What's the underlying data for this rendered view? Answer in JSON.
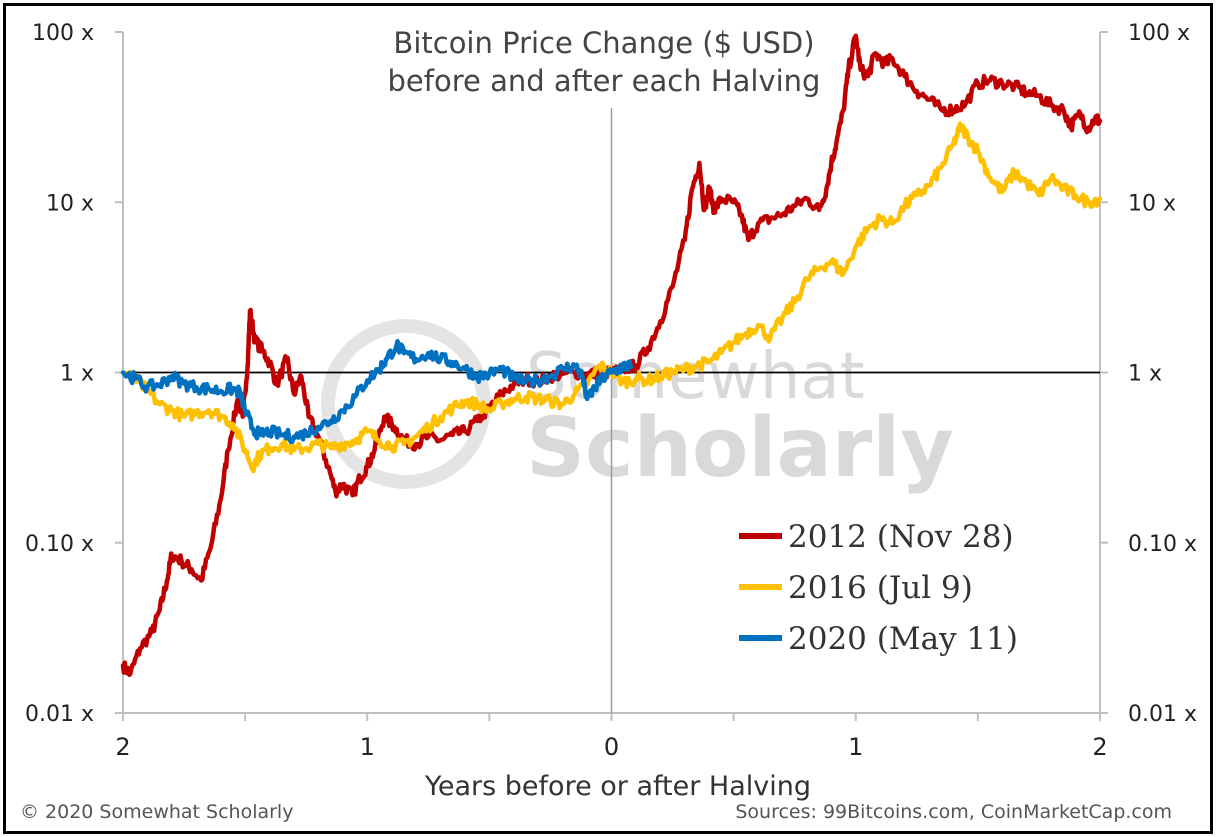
{
  "chart_data": {
    "type": "line",
    "title_lines": [
      "Bitcoin Price Change ($ USD)",
      "before and after each Halving"
    ],
    "xlabel": "Years before or after Halving",
    "x_range": [
      -2,
      2
    ],
    "x_tick_values": [
      -2,
      -1,
      0,
      1,
      2
    ],
    "x_tick_labels": [
      "2",
      "1",
      "0",
      "1",
      "2"
    ],
    "y_scale": "log",
    "y_range": [
      0.01,
      100
    ],
    "y_tick_values": [
      0.01,
      0.1,
      1,
      10,
      100
    ],
    "y_tick_labels": [
      "0.01 x",
      "0.10 x",
      "1 x",
      "10 x",
      "100 x"
    ],
    "reference_line_y": 1,
    "vertical_line_x": 0,
    "legend_position": "bottom-right",
    "series": [
      {
        "name": "2012 (Nov 28)",
        "color": "#c00000",
        "points": [
          [
            -2.0,
            0.019
          ],
          [
            -1.97,
            0.017
          ],
          [
            -1.93,
            0.024
          ],
          [
            -1.88,
            0.03
          ],
          [
            -1.85,
            0.04
          ],
          [
            -1.82,
            0.06
          ],
          [
            -1.8,
            0.085
          ],
          [
            -1.76,
            0.078
          ],
          [
            -1.72,
            0.07
          ],
          [
            -1.68,
            0.06
          ],
          [
            -1.64,
            0.095
          ],
          [
            -1.6,
            0.18
          ],
          [
            -1.57,
            0.35
          ],
          [
            -1.53,
            0.7
          ],
          [
            -1.51,
            0.55
          ],
          [
            -1.49,
            1.1
          ],
          [
            -1.48,
            2.3
          ],
          [
            -1.46,
            1.55
          ],
          [
            -1.43,
            1.35
          ],
          [
            -1.4,
            1.15
          ],
          [
            -1.37,
            0.85
          ],
          [
            -1.33,
            1.2
          ],
          [
            -1.3,
            0.75
          ],
          [
            -1.27,
            0.95
          ],
          [
            -1.24,
            0.55
          ],
          [
            -1.2,
            0.42
          ],
          [
            -1.16,
            0.28
          ],
          [
            -1.13,
            0.2
          ],
          [
            -1.1,
            0.22
          ],
          [
            -1.06,
            0.19
          ],
          [
            -1.03,
            0.24
          ],
          [
            -1.0,
            0.28
          ],
          [
            -0.97,
            0.35
          ],
          [
            -0.93,
            0.55
          ],
          [
            -0.89,
            0.48
          ],
          [
            -0.85,
            0.4
          ],
          [
            -0.8,
            0.38
          ],
          [
            -0.75,
            0.42
          ],
          [
            -0.7,
            0.4
          ],
          [
            -0.65,
            0.43
          ],
          [
            -0.6,
            0.45
          ],
          [
            -0.55,
            0.52
          ],
          [
            -0.5,
            0.62
          ],
          [
            -0.45,
            0.75
          ],
          [
            -0.4,
            0.85
          ],
          [
            -0.35,
            0.92
          ],
          [
            -0.3,
            0.88
          ],
          [
            -0.25,
            0.95
          ],
          [
            -0.2,
            0.98
          ],
          [
            -0.15,
            1.0
          ],
          [
            -0.1,
            0.97
          ],
          [
            -0.05,
            1.0
          ],
          [
            0.0,
            1.0
          ],
          [
            0.05,
            1.05
          ],
          [
            0.1,
            1.1
          ],
          [
            0.15,
            1.4
          ],
          [
            0.2,
            2.0
          ],
          [
            0.25,
            3.2
          ],
          [
            0.3,
            6.0
          ],
          [
            0.33,
            12.0
          ],
          [
            0.36,
            17.0
          ],
          [
            0.38,
            9.0
          ],
          [
            0.4,
            12.0
          ],
          [
            0.42,
            9.0
          ],
          [
            0.45,
            10.5
          ],
          [
            0.5,
            10.0
          ],
          [
            0.53,
            8.5
          ],
          [
            0.56,
            6.0
          ],
          [
            0.6,
            7.5
          ],
          [
            0.65,
            8.0
          ],
          [
            0.7,
            8.5
          ],
          [
            0.75,
            9.5
          ],
          [
            0.8,
            10.5
          ],
          [
            0.85,
            9.0
          ],
          [
            0.88,
            12.0
          ],
          [
            0.9,
            17.0
          ],
          [
            0.92,
            22.0
          ],
          [
            0.95,
            35.0
          ],
          [
            0.97,
            60.0
          ],
          [
            1.0,
            95.0
          ],
          [
            1.02,
            60.0
          ],
          [
            1.05,
            55.0
          ],
          [
            1.08,
            75.0
          ],
          [
            1.12,
            65.0
          ],
          [
            1.15,
            70.0
          ],
          [
            1.2,
            55.0
          ],
          [
            1.25,
            45.0
          ],
          [
            1.3,
            40.0
          ],
          [
            1.35,
            35.0
          ],
          [
            1.4,
            35.0
          ],
          [
            1.45,
            38.0
          ],
          [
            1.5,
            50.0
          ],
          [
            1.55,
            52.0
          ],
          [
            1.6,
            50.0
          ],
          [
            1.65,
            48.0
          ],
          [
            1.7,
            44.0
          ],
          [
            1.75,
            42.0
          ],
          [
            1.8,
            37.0
          ],
          [
            1.85,
            35.0
          ],
          [
            1.88,
            28.0
          ],
          [
            1.92,
            33.0
          ],
          [
            1.95,
            27.0
          ],
          [
            1.98,
            31.0
          ],
          [
            2.0,
            30.0
          ]
        ]
      },
      {
        "name": "2016 (Jul 9)",
        "color": "#ffc000",
        "points": [
          [
            -2.0,
            1.0
          ],
          [
            -1.95,
            0.92
          ],
          [
            -1.9,
            0.78
          ],
          [
            -1.85,
            0.65
          ],
          [
            -1.8,
            0.6
          ],
          [
            -1.75,
            0.55
          ],
          [
            -1.7,
            0.58
          ],
          [
            -1.65,
            0.6
          ],
          [
            -1.6,
            0.56
          ],
          [
            -1.55,
            0.5
          ],
          [
            -1.5,
            0.35
          ],
          [
            -1.47,
            0.28
          ],
          [
            -1.44,
            0.33
          ],
          [
            -1.4,
            0.36
          ],
          [
            -1.35,
            0.38
          ],
          [
            -1.3,
            0.35
          ],
          [
            -1.25,
            0.36
          ],
          [
            -1.2,
            0.38
          ],
          [
            -1.15,
            0.36
          ],
          [
            -1.1,
            0.38
          ],
          [
            -1.05,
            0.4
          ],
          [
            -1.0,
            0.45
          ],
          [
            -0.95,
            0.4
          ],
          [
            -0.9,
            0.37
          ],
          [
            -0.85,
            0.38
          ],
          [
            -0.8,
            0.42
          ],
          [
            -0.75,
            0.48
          ],
          [
            -0.7,
            0.55
          ],
          [
            -0.65,
            0.62
          ],
          [
            -0.6,
            0.68
          ],
          [
            -0.55,
            0.65
          ],
          [
            -0.5,
            0.6
          ],
          [
            -0.45,
            0.66
          ],
          [
            -0.4,
            0.7
          ],
          [
            -0.35,
            0.72
          ],
          [
            -0.3,
            0.7
          ],
          [
            -0.25,
            0.68
          ],
          [
            -0.2,
            0.65
          ],
          [
            -0.15,
            0.75
          ],
          [
            -0.1,
            0.85
          ],
          [
            -0.05,
            1.1
          ],
          [
            0.0,
            1.0
          ],
          [
            0.05,
            0.88
          ],
          [
            0.1,
            0.92
          ],
          [
            0.15,
            0.9
          ],
          [
            0.2,
            0.95
          ],
          [
            0.25,
            1.0
          ],
          [
            0.3,
            1.05
          ],
          [
            0.35,
            1.1
          ],
          [
            0.4,
            1.15
          ],
          [
            0.45,
            1.3
          ],
          [
            0.5,
            1.5
          ],
          [
            0.55,
            1.7
          ],
          [
            0.6,
            1.9
          ],
          [
            0.65,
            1.6
          ],
          [
            0.7,
            2.1
          ],
          [
            0.75,
            2.6
          ],
          [
            0.8,
            3.5
          ],
          [
            0.85,
            4.1
          ],
          [
            0.9,
            4.5
          ],
          [
            0.95,
            3.8
          ],
          [
            1.0,
            5.5
          ],
          [
            1.05,
            7.0
          ],
          [
            1.1,
            8.0
          ],
          [
            1.15,
            7.5
          ],
          [
            1.2,
            9.5
          ],
          [
            1.25,
            11.0
          ],
          [
            1.3,
            12.5
          ],
          [
            1.35,
            16.0
          ],
          [
            1.4,
            22.0
          ],
          [
            1.43,
            28.0
          ],
          [
            1.46,
            24.0
          ],
          [
            1.5,
            20.0
          ],
          [
            1.55,
            14.0
          ],
          [
            1.6,
            11.5
          ],
          [
            1.65,
            15.0
          ],
          [
            1.7,
            13.0
          ],
          [
            1.75,
            11.0
          ],
          [
            1.8,
            14.0
          ],
          [
            1.85,
            12.0
          ],
          [
            1.9,
            11.0
          ],
          [
            1.95,
            10.0
          ],
          [
            2.0,
            10.5
          ]
        ]
      },
      {
        "name": "2020 (May 11)",
        "color": "#0070c0",
        "points": [
          [
            -2.0,
            1.0
          ],
          [
            -1.95,
            0.92
          ],
          [
            -1.9,
            0.82
          ],
          [
            -1.85,
            0.85
          ],
          [
            -1.8,
            0.95
          ],
          [
            -1.75,
            0.86
          ],
          [
            -1.7,
            0.82
          ],
          [
            -1.65,
            0.8
          ],
          [
            -1.6,
            0.78
          ],
          [
            -1.55,
            0.8
          ],
          [
            -1.52,
            0.76
          ],
          [
            -1.5,
            0.6
          ],
          [
            -1.47,
            0.47
          ],
          [
            -1.44,
            0.43
          ],
          [
            -1.4,
            0.45
          ],
          [
            -1.35,
            0.43
          ],
          [
            -1.3,
            0.42
          ],
          [
            -1.25,
            0.44
          ],
          [
            -1.2,
            0.48
          ],
          [
            -1.15,
            0.52
          ],
          [
            -1.1,
            0.6
          ],
          [
            -1.05,
            0.72
          ],
          [
            -1.0,
            0.9
          ],
          [
            -0.95,
            1.05
          ],
          [
            -0.92,
            1.2
          ],
          [
            -0.88,
            1.45
          ],
          [
            -0.85,
            1.3
          ],
          [
            -0.8,
            1.2
          ],
          [
            -0.75,
            1.3
          ],
          [
            -0.7,
            1.2
          ],
          [
            -0.65,
            1.15
          ],
          [
            -0.6,
            1.05
          ],
          [
            -0.55,
            0.95
          ],
          [
            -0.5,
            0.98
          ],
          [
            -0.45,
            1.05
          ],
          [
            -0.4,
            0.92
          ],
          [
            -0.35,
            0.88
          ],
          [
            -0.3,
            0.9
          ],
          [
            -0.25,
            0.95
          ],
          [
            -0.2,
            1.05
          ],
          [
            -0.15,
            1.1
          ],
          [
            -0.12,
            0.95
          ],
          [
            -0.1,
            0.7
          ],
          [
            -0.07,
            0.8
          ],
          [
            -0.04,
            0.92
          ],
          [
            0.0,
            1.0
          ],
          [
            0.03,
            1.05
          ],
          [
            0.06,
            1.1
          ],
          [
            0.08,
            1.08
          ]
        ]
      }
    ]
  },
  "footer": {
    "copyright": "© 2020 Somewhat Scholarly",
    "sources": "Sources: 99Bitcoins.com, CoinMarketCap.com"
  },
  "watermark": {
    "line1": "Somewhat",
    "line2": "Scholarly"
  }
}
